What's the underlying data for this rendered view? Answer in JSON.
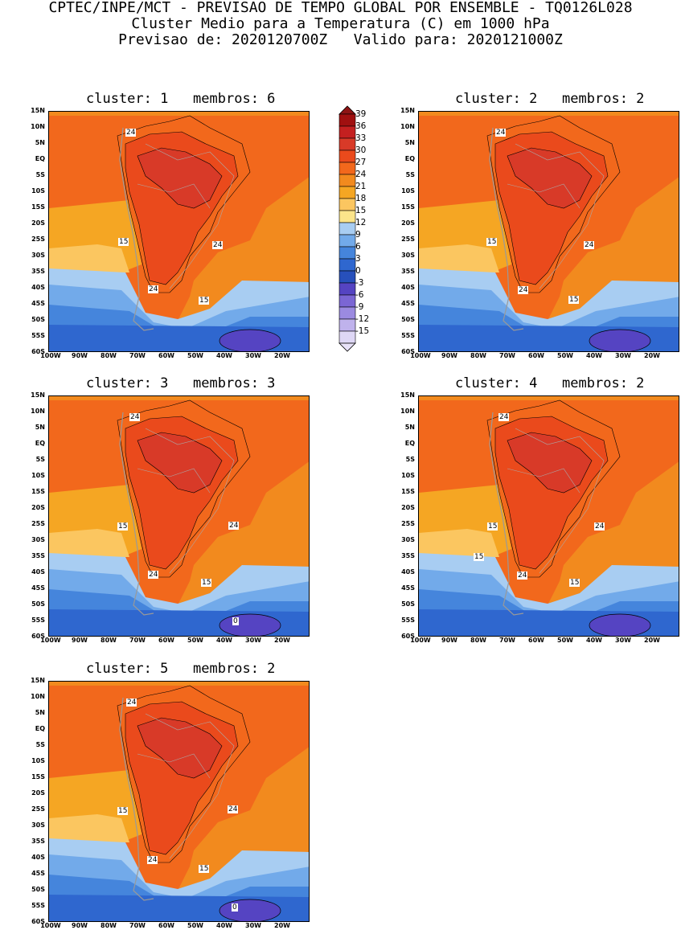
{
  "header": {
    "line1": "CPTEC/INPE/MCT - PREVISAO DE TEMPO GLOBAL POR ENSEMBLE - TQ0126L028",
    "line2": "Cluster Medio para a Temperatura (C) em 1000 hPa",
    "line3": "Previsao de: 2020120700Z   Valido para: 2020121000Z"
  },
  "panels": [
    {
      "title": "cluster: 1   membros: 6",
      "labels": [
        "24",
        "15",
        "24",
        "24",
        "15"
      ]
    },
    {
      "title": "cluster: 2   membros: 2",
      "labels": [
        "24",
        "15",
        "24",
        "24",
        "15"
      ]
    },
    {
      "title": "cluster: 3   membros: 3",
      "labels": [
        "24",
        "15",
        "24",
        "24",
        "15",
        "0"
      ]
    },
    {
      "title": "cluster: 4   membros: 2",
      "labels": [
        "24",
        "15",
        "24",
        "24",
        "15",
        "15"
      ]
    },
    {
      "title": "cluster: 5   membros: 2",
      "labels": [
        "24",
        "15",
        "24",
        "24",
        "15",
        "0"
      ]
    }
  ],
  "axes": {
    "lat_labels": [
      "15N",
      "10N",
      "5N",
      "EQ",
      "5S",
      "10S",
      "15S",
      "20S",
      "25S",
      "30S",
      "35S",
      "40S",
      "45S",
      "50S",
      "55S",
      "60S"
    ],
    "lon_labels": [
      "100W",
      "90W",
      "80W",
      "70W",
      "60W",
      "50W",
      "40W",
      "30W",
      "20W"
    ]
  },
  "colorbar": {
    "levels": [
      "39",
      "36",
      "33",
      "30",
      "27",
      "24",
      "21",
      "18",
      "15",
      "12",
      "9",
      "6",
      "3",
      "0",
      "-3",
      "-6",
      "-9",
      "-12",
      "-15"
    ],
    "colors": [
      "#a01010",
      "#c42020",
      "#d83a28",
      "#ea4a1c",
      "#f2681c",
      "#f28a1e",
      "#f5a623",
      "#fbc660",
      "#fbe48a",
      "#a8cdf2",
      "#72aaea",
      "#4585dc",
      "#2f67cf",
      "#2750bb",
      "#5544c2",
      "#7b66d4",
      "#9b8ae0",
      "#bfb2ec",
      "#ded7f5"
    ],
    "arrow_top": "#8e1414",
    "arrow_bottom": "#e8e2f8"
  }
}
